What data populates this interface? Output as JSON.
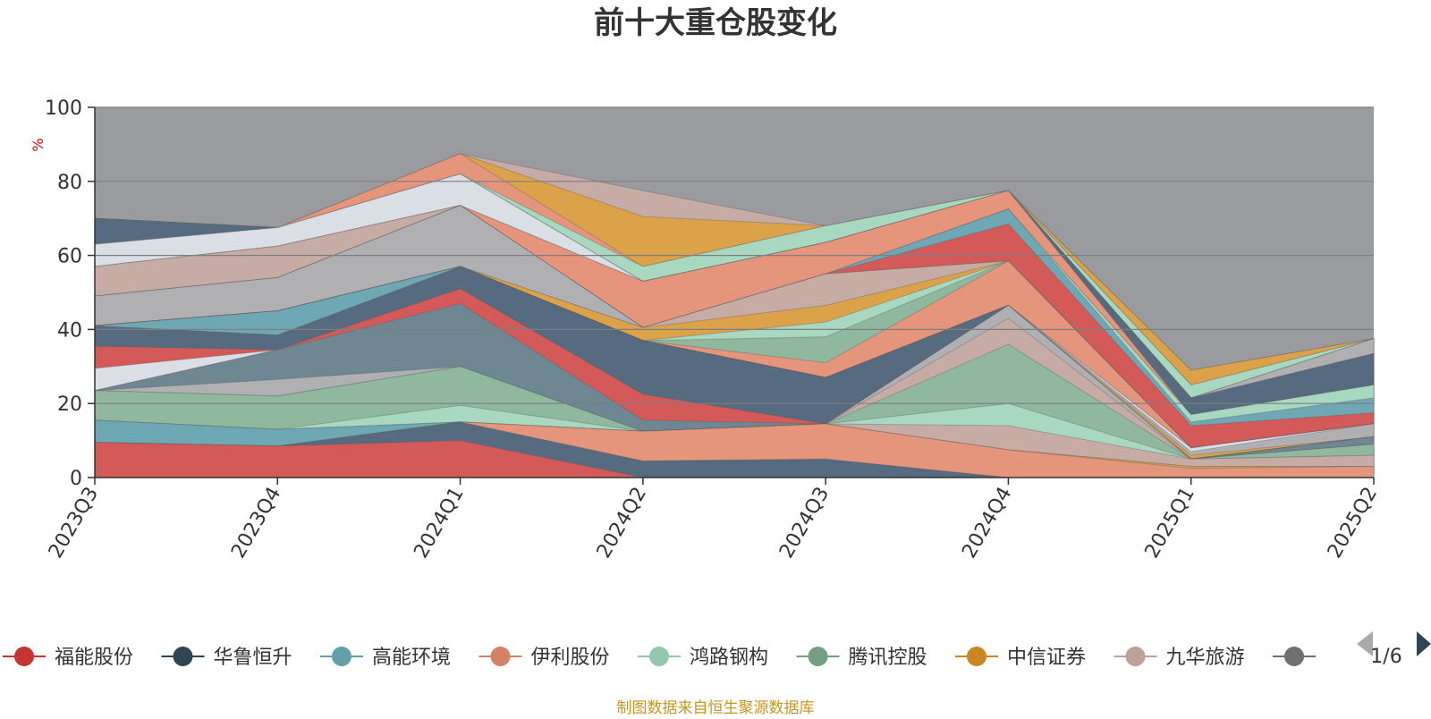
{
  "chart_data": {
    "type": "area",
    "title": "前十大重仓股变化",
    "ylabel": "%",
    "ylim": [
      0,
      100
    ],
    "yticks": [
      0,
      20,
      40,
      60,
      80,
      100
    ],
    "grid": true,
    "x": [
      "2023Q3",
      "2023Q4",
      "2024Q1",
      "2024Q2",
      "2024Q3",
      "2024Q4",
      "2025Q1",
      "2025Q2"
    ],
    "series": [
      {
        "name": "福能股份",
        "color": "#d45a5a",
        "values": [
          9.5,
          8.5,
          10,
          0,
          0,
          0,
          0,
          0
        ]
      },
      {
        "name": "华鲁恒升",
        "color": "#566b7f",
        "values": [
          0,
          0,
          5,
          4.5,
          5,
          0,
          0,
          0
        ]
      },
      {
        "name": "高能环境",
        "color": "#6fa8b5",
        "values": [
          6,
          4.5,
          0,
          0,
          0,
          0,
          0,
          0
        ]
      },
      {
        "name": "伊利股份",
        "color": "#e4957c",
        "values": [
          0,
          0,
          0,
          8,
          9.5,
          7.5,
          2.5,
          3
        ]
      },
      {
        "name": "鸿路钢构",
        "color": "#a8d8c0",
        "values": [
          0,
          0,
          4.5,
          0,
          0,
          0,
          0,
          0
        ]
      },
      {
        "name": "腾讯控股",
        "color": "#8fb89e",
        "values": [
          8,
          9,
          10.5,
          0,
          0,
          0,
          0,
          0
        ]
      },
      {
        "name": "中信证券",
        "color": "#dba24a",
        "values": [
          0,
          0,
          0,
          0,
          0,
          0,
          0,
          0
        ]
      },
      {
        "name": "九华旅游",
        "color": "#c7aca6",
        "values": [
          0,
          0,
          0,
          0,
          0,
          0,
          0,
          0
        ]
      }
    ],
    "layers": [
      {
        "color": "#d45a5a",
        "top": [
          9.5,
          8.5,
          10,
          0,
          0,
          0,
          0,
          0
        ]
      },
      {
        "color": "#566b7f",
        "top": [
          9.5,
          8.5,
          15,
          4.5,
          5,
          0,
          0,
          0
        ]
      },
      {
        "color": "#e4957c",
        "top": [
          9.5,
          8.5,
          15,
          12.5,
          14.5,
          7.5,
          2.5,
          3
        ]
      },
      {
        "color": "#dba24a",
        "top": [
          9.5,
          8.5,
          15,
          12.5,
          14.5,
          7.5,
          3,
          3
        ]
      },
      {
        "color": "#6fa8b5",
        "top": [
          15.5,
          13,
          15,
          12.5,
          14.5,
          7.5,
          3,
          3
        ]
      },
      {
        "color": "#c7aca6",
        "top": [
          15.5,
          13,
          15,
          12.5,
          14.5,
          14,
          5,
          6
        ]
      },
      {
        "color": "#a8d8c0",
        "top": [
          15.5,
          13,
          19.5,
          12.5,
          14.5,
          20,
          5,
          6
        ]
      },
      {
        "color": "#8fb89e",
        "top": [
          23.5,
          22,
          30,
          12.5,
          14.5,
          36,
          5,
          9
        ]
      },
      {
        "color": "#c7aca6",
        "top": [
          23.5,
          22,
          30,
          12.5,
          14.5,
          43,
          5,
          9
        ]
      },
      {
        "color": "#b0b0b3",
        "top": [
          23.5,
          26.5,
          30,
          12.5,
          14.5,
          46.5,
          5,
          9
        ]
      },
      {
        "color": "#6f8792",
        "top": [
          23.5,
          34.5,
          47,
          15.5,
          14.5,
          46.5,
          5,
          11
        ]
      },
      {
        "color": "#d45a5a",
        "top": [
          23.5,
          34.5,
          51,
          22.5,
          14.5,
          46.5,
          5,
          11
        ]
      },
      {
        "color": "#dadee5",
        "top": [
          29.5,
          34.5,
          51,
          22.5,
          14.5,
          46.5,
          5,
          11
        ]
      },
      {
        "color": "#d45a5a",
        "top": [
          35.5,
          34.5,
          51,
          22.5,
          14.5,
          46.5,
          5,
          11
        ]
      },
      {
        "color": "#566b7f",
        "top": [
          41,
          38.5,
          57,
          37,
          27,
          46.5,
          5,
          11
        ]
      },
      {
        "color": "#6fa8b5",
        "top": [
          41,
          45,
          57,
          37,
          27,
          46.5,
          5,
          11
        ]
      },
      {
        "color": "#dba24a",
        "top": [
          41,
          45,
          57,
          37,
          27,
          46.5,
          6,
          11
        ]
      },
      {
        "color": "#b0b0b3",
        "top": [
          41,
          45,
          57,
          37,
          27,
          46.5,
          7,
          14.5
        ]
      },
      {
        "color": "#dadee5",
        "top": [
          41,
          45,
          57,
          37,
          27,
          46.5,
          8,
          14.5
        ]
      },
      {
        "color": "#d45a5a",
        "top": [
          41,
          45,
          57,
          37,
          27,
          46.5,
          8,
          14.5
        ]
      },
      {
        "color": "#e4957c",
        "top": [
          41,
          45,
          57,
          37,
          31,
          58.5,
          8,
          14.5
        ]
      },
      {
        "color": "#8fb89e",
        "top": [
          41,
          45,
          57,
          37,
          38,
          58.5,
          8,
          14.5
        ]
      },
      {
        "color": "#a8d8c0",
        "top": [
          41,
          45,
          57,
          37,
          42,
          58.5,
          8,
          14.5
        ]
      },
      {
        "color": "#dba24a",
        "top": [
          41,
          45,
          57,
          40.5,
          46.5,
          58.5,
          8,
          14.5
        ]
      },
      {
        "color": "#c7aca6",
        "top": [
          41,
          45,
          57,
          40.5,
          55,
          58.5,
          8,
          14.5
        ]
      },
      {
        "color": "#b0b0b3",
        "top": [
          49,
          54,
          73.5,
          40.5,
          55,
          58.5,
          8,
          14.5
        ]
      },
      {
        "color": "#d45a5a",
        "top": [
          49,
          54,
          73.5,
          40.5,
          55,
          68.5,
          14,
          17.5
        ]
      },
      {
        "color": "#6fa8b5",
        "top": [
          49,
          54,
          73.5,
          40.5,
          55,
          72.5,
          15,
          21.5
        ]
      },
      {
        "color": "#a8d8c0",
        "top": [
          49,
          54,
          73.5,
          40.5,
          55,
          72.5,
          17,
          25
        ]
      },
      {
        "color": "#c7aca6",
        "top": [
          57,
          62.5,
          73.5,
          40.5,
          55,
          72.5,
          17,
          25
        ]
      },
      {
        "color": "#e4957c",
        "top": [
          57,
          62.5,
          73.5,
          53,
          63.5,
          77.5,
          17,
          25
        ]
      },
      {
        "color": "#566b7f",
        "top": [
          57,
          62.5,
          73.5,
          53,
          63.5,
          77.5,
          21.5,
          33.5
        ]
      },
      {
        "color": "#dadee5",
        "top": [
          63,
          67.5,
          82,
          53,
          63.5,
          77.5,
          21.5,
          33.5
        ]
      },
      {
        "color": "#b0b0b3",
        "top": [
          63,
          67.5,
          82,
          53,
          63.5,
          77.5,
          21.5,
          37.5
        ]
      },
      {
        "color": "#566b7f",
        "top": [
          70,
          67.5,
          82,
          53,
          63.5,
          77.5,
          21.5,
          37.5
        ]
      },
      {
        "color": "#a8d8c0",
        "top": [
          70,
          67.5,
          82,
          57,
          68,
          77.5,
          25,
          37.5
        ]
      },
      {
        "color": "#e4957c",
        "top": [
          70,
          67.5,
          87.5,
          57,
          68,
          77.5,
          25,
          37.5
        ]
      },
      {
        "color": "#dba24a",
        "top": [
          70,
          67.5,
          87.5,
          70.5,
          68,
          77.5,
          29,
          37.5
        ]
      },
      {
        "color": "#c7aca6",
        "top": [
          70,
          67.5,
          87.5,
          77.5,
          68,
          77.5,
          29,
          37.5
        ]
      }
    ]
  },
  "legend": {
    "items": [
      {
        "label": "福能股份",
        "color": "#c23531",
        "icon": "circle-marker-icon"
      },
      {
        "label": "华鲁恒升",
        "color": "#2f4554",
        "icon": "circle-marker-icon"
      },
      {
        "label": "高能环境",
        "color": "#61a0a8",
        "icon": "circle-marker-icon"
      },
      {
        "label": "伊利股份",
        "color": "#d48265",
        "icon": "circle-marker-icon"
      },
      {
        "label": "鸿路钢构",
        "color": "#91c7ae",
        "icon": "circle-marker-icon"
      },
      {
        "label": "腾讯控股",
        "color": "#749f83",
        "icon": "circle-marker-icon"
      },
      {
        "label": "中信证券",
        "color": "#ca8622",
        "icon": "circle-marker-icon"
      },
      {
        "label": "九华旅游",
        "color": "#bda29a",
        "icon": "circle-marker-icon"
      },
      {
        "label": "",
        "color": "#6e7074",
        "icon": "circle-marker-icon"
      }
    ],
    "page": "1/6",
    "prev_icon": "triangle-left-icon",
    "next_icon": "triangle-right-icon"
  },
  "footer": {
    "source": "制图数据来自恒生聚源数据库"
  },
  "colors": {
    "plot_background": "#9a9b9f",
    "grid": "#7d7e82",
    "axis": "#333333",
    "pager_active": "#2f4554",
    "pager_inactive": "#aaaaaa"
  }
}
